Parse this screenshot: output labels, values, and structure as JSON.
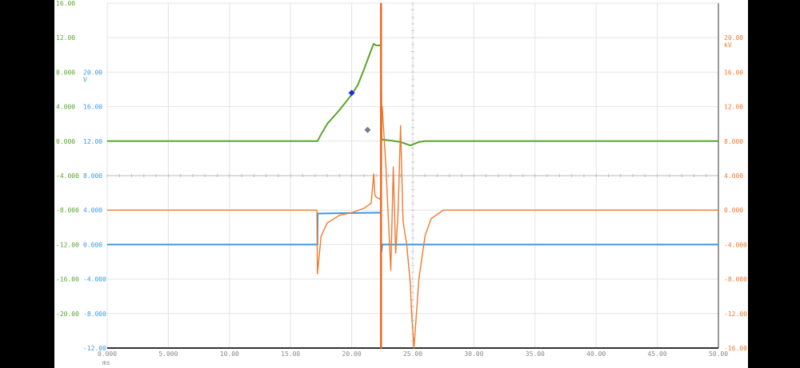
{
  "chart_data": {
    "type": "line",
    "x_unit": "ms",
    "xlim": [
      0,
      50
    ],
    "x_ticks": [
      "0.000",
      "5.000",
      "10.00",
      "15.00",
      "20.00",
      "25.00",
      "30.00",
      "35.00",
      "40.00",
      "45.00",
      "50.00"
    ],
    "grid": true,
    "axes": [
      {
        "id": "green",
        "side": "left-outer",
        "color": "#5aa52a",
        "unit": "",
        "ylim": [
          -24,
          16
        ],
        "ticks": [
          "16.00",
          "12.00",
          "8.000",
          "4.000",
          "0.000",
          "-4.000",
          "-8.000",
          "-12.00",
          "-16.00",
          "-20.00"
        ],
        "tick_values": [
          16,
          12,
          8,
          4,
          0,
          -4,
          -8,
          -12,
          -16,
          -20
        ]
      },
      {
        "id": "blue",
        "side": "left-inner",
        "color": "#3a9ae0",
        "unit": "V",
        "ylim": [
          -12,
          28
        ],
        "ticks": [
          "20.00",
          "16.00",
          "12.00",
          "8.000",
          "4.000",
          "0.000",
          "-4.000",
          "-8.000",
          "-12.00"
        ],
        "tick_values": [
          20,
          16,
          12,
          8,
          4,
          0,
          -4,
          -8,
          -12
        ]
      },
      {
        "id": "orange",
        "side": "right",
        "color": "#ee7a30",
        "unit": "kV",
        "ylim": [
          -16,
          24
        ],
        "ticks": [
          "20.00",
          "16.00",
          "12.00",
          "8.000",
          "4.000",
          "0.000",
          "-4.000",
          "-8.000",
          "-12.00",
          "-16.00"
        ],
        "tick_values": [
          20,
          16,
          12,
          8,
          4,
          0,
          -4,
          -8,
          -12,
          -16
        ]
      }
    ],
    "series": [
      {
        "axis": "green",
        "color": "#5aa52a",
        "x": [
          0,
          17.2,
          17.5,
          18,
          19,
          20,
          20.5,
          21,
          21.5,
          21.8,
          22,
          22.4,
          22.45,
          23.5,
          24,
          24.8,
          25.5,
          26,
          50
        ],
        "y": [
          0,
          0,
          0.8,
          2.0,
          3.6,
          5.4,
          6.5,
          8.3,
          10.2,
          11.3,
          11.1,
          11.1,
          0.2,
          0,
          -0.1,
          -0.5,
          -0.1,
          0,
          0
        ]
      },
      {
        "axis": "blue",
        "color": "#3a9ae0",
        "x": [
          0,
          17.2,
          17.22,
          22.4,
          22.42,
          22.45,
          22.5,
          50
        ],
        "y": [
          0,
          0,
          3.6,
          3.7,
          0,
          -0.8,
          0,
          0
        ]
      },
      {
        "axis": "orange",
        "color": "#ee7a30",
        "x": [
          0,
          17.15,
          17.2,
          17.5,
          18,
          19,
          20,
          21,
          21.6,
          21.8,
          21.9,
          22,
          22.3,
          22.38,
          22.4,
          22.42,
          22.44,
          22.5,
          22.8,
          23.2,
          23.4,
          23.6,
          23.8,
          24,
          24.2,
          24.5,
          24.8,
          24.9,
          25,
          25.1,
          25.5,
          26,
          26.5,
          27.5,
          50
        ],
        "y": [
          0,
          0,
          -7.4,
          -3,
          -1.5,
          -0.6,
          -0.3,
          0.2,
          0.8,
          4.2,
          1.8,
          1.5,
          1.3,
          1.5,
          24,
          -16,
          12,
          12,
          5,
          -7,
          5,
          -5,
          0,
          9.8,
          -1.3,
          -4,
          -8.5,
          -12,
          -14,
          -16,
          -8,
          -3,
          -1,
          0,
          0
        ]
      }
    ],
    "markers": [
      {
        "x": 20.0,
        "y": 5.6,
        "axis": "green",
        "color": "#1a2ee0"
      },
      {
        "x": 21.3,
        "y": 1.3,
        "axis": "green",
        "color": "#708090"
      }
    ]
  }
}
